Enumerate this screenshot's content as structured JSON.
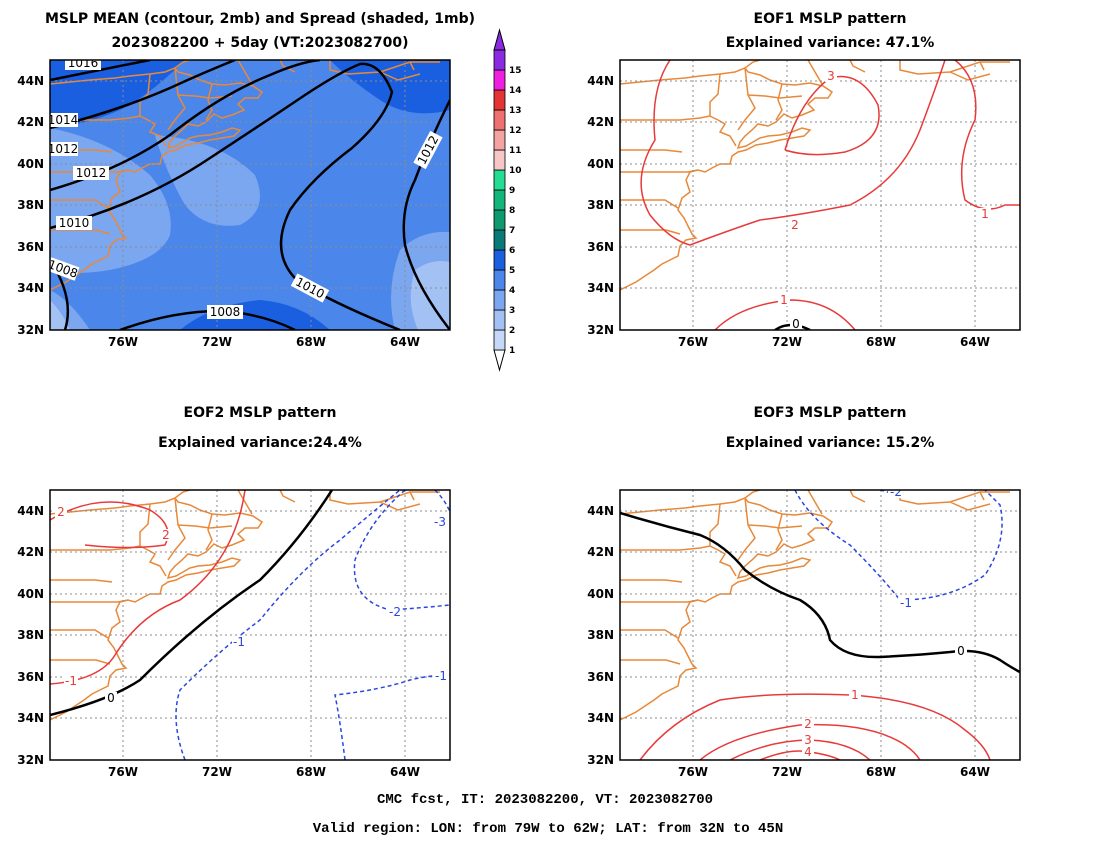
{
  "figure": {
    "footer_line1": "CMC fcst, IT: 2023082200, VT: 2023082700",
    "footer_line2": "Valid region: LON: from 79W to 62W; LAT: from 32N to 45N"
  },
  "lon_ticks": [
    "76W",
    "72W",
    "68W",
    "64W"
  ],
  "lat_ticks": [
    "32N",
    "34N",
    "36N",
    "38N",
    "40N",
    "42N",
    "44N"
  ],
  "colorbar": {
    "levels": [
      "1",
      "2",
      "3",
      "4",
      "5",
      "6",
      "7",
      "8",
      "9",
      "10",
      "11",
      "12",
      "13",
      "14",
      "15"
    ],
    "colors": [
      "#c6d7f7",
      "#a4c1f4",
      "#7ba6f0",
      "#4b86eb",
      "#1a5fe0",
      "#0a7a78",
      "#0d9a6e",
      "#12b57a",
      "#22dd92",
      "#f7c6c6",
      "#f4a3a3",
      "#ee7070",
      "#e43434",
      "#f01ee0",
      "#8a2be2"
    ]
  },
  "panels": [
    {
      "id": "mean",
      "title_line1": "MSLP MEAN (contour, 2mb) and Spread (shaded, 1mb)",
      "title_line2": "2023082200 + 5day (VT:2023082700)",
      "contour_labels": [
        "1016",
        "1014",
        "1012",
        "1010",
        "1008",
        "1012",
        "1010",
        "1008"
      ]
    },
    {
      "id": "eof1",
      "title_line1": "EOF1 MSLP pattern",
      "title_line2": "Explained variance: 47.1%",
      "contour_labels": [
        "3",
        "2",
        "1",
        "1",
        "0"
      ]
    },
    {
      "id": "eof2",
      "title_line1": "EOF2 MSLP pattern",
      "title_line2": "Explained variance:24.4%",
      "contour_labels": [
        "2",
        "2",
        "-1",
        "0",
        "-1",
        "-2",
        "-3",
        "-1"
      ]
    },
    {
      "id": "eof3",
      "title_line1": "EOF3 MSLP pattern",
      "title_line2": "Explained variance: 15.2%",
      "contour_labels": [
        "-2",
        "-1",
        "0",
        "1",
        "2",
        "3",
        "4"
      ]
    }
  ],
  "colors": {
    "coast": "#e8893a",
    "positive": "#e83a3a",
    "negative": "#2a46e0",
    "zero": "#000000",
    "grid": "#9a9a9a"
  }
}
